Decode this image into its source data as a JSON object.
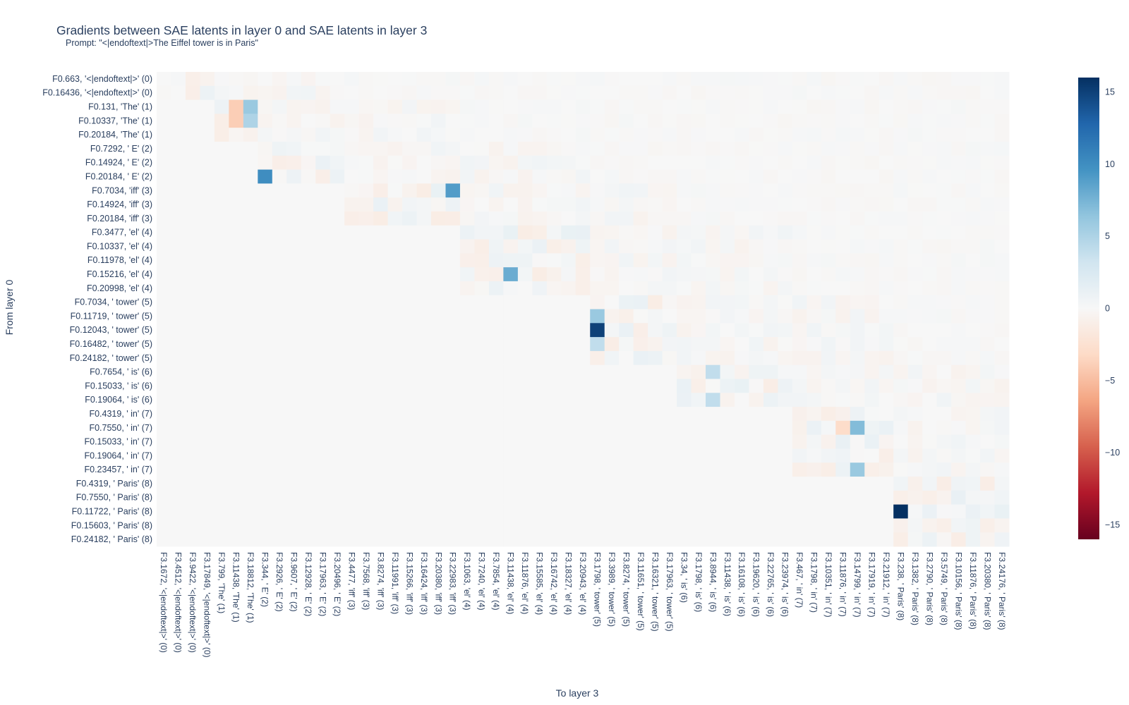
{
  "chart_data": {
    "type": "heatmap",
    "title": "Gradients between SAE latents in layer 0 and SAE latents in layer 3",
    "subtitle": "Prompt: \"<|endoftext|>The Eiffel tower is in Paris\"",
    "xlabel": "To layer 3",
    "ylabel": "From layer 0",
    "zlim": [
      -16,
      16
    ],
    "colorbar_ticks": [
      15,
      10,
      5,
      0,
      -5,
      -10,
      -15
    ],
    "colorbar_tick_labels": [
      "15",
      "10",
      "5",
      "0",
      "−5",
      "−10",
      "−15"
    ],
    "colorscale": [
      "#67001f",
      "#b2182b",
      "#d6604d",
      "#f4a582",
      "#fddbc7",
      "#f7f7f7",
      "#d1e5f0",
      "#92c5de",
      "#4393c3",
      "#2166ac",
      "#053061"
    ],
    "y_labels": [
      "F0.663, '<|endoftext|>' (0)",
      "F0.16436, '<|endoftext|>' (0)",
      "F0.131, 'The' (1)",
      "F0.10337, 'The' (1)",
      "F0.20184, 'The' (1)",
      "F0.7292, ' E' (2)",
      "F0.14924, ' E' (2)",
      "F0.20184, ' E' (2)",
      "F0.7034, 'iff' (3)",
      "F0.14924, 'iff' (3)",
      "F0.20184, 'iff' (3)",
      "F0.3477, 'el' (4)",
      "F0.10337, 'el' (4)",
      "F0.11978, 'el' (4)",
      "F0.15216, 'el' (4)",
      "F0.20998, 'el' (4)",
      "F0.7034, ' tower' (5)",
      "F0.11719, ' tower' (5)",
      "F0.12043, ' tower' (5)",
      "F0.16482, ' tower' (5)",
      "F0.24182, ' tower' (5)",
      "F0.7654, ' is' (6)",
      "F0.15033, ' is' (6)",
      "F0.19064, ' is' (6)",
      "F0.4319, ' in' (7)",
      "F0.7550, ' in' (7)",
      "F0.15033, ' in' (7)",
      "F0.19064, ' in' (7)",
      "F0.23457, ' in' (7)",
      "F0.4319, ' Paris' (8)",
      "F0.7550, ' Paris' (8)",
      "F0.11722, ' Paris' (8)",
      "F0.15603, ' Paris' (8)",
      "F0.24182, ' Paris' (8)"
    ],
    "x_labels": [
      "F3.1672, '<|endoftext|>' (0)",
      "F3.4512, '<|endoftext|>' (0)",
      "F3.9422, '<|endoftext|>' (0)",
      "F3.17849, '<|endoftext|>' (0)",
      "F3.799, 'The' (1)",
      "F3.11438, 'The' (1)",
      "F3.18812, 'The' (1)",
      "F3.344, ' E' (2)",
      "F3.2926, ' E' (2)",
      "F3.9607, ' E' (2)",
      "F3.12928, ' E' (2)",
      "F3.17963, ' E' (2)",
      "F3.20496, ' E' (2)",
      "F3.4477, 'iff' (3)",
      "F3.7568, 'iff' (3)",
      "F3.8274, 'iff' (3)",
      "F3.11991, 'iff' (3)",
      "F3.15266, 'iff' (3)",
      "F3.16424, 'iff' (3)",
      "F3.20380, 'iff' (3)",
      "F3.22983, 'iff' (3)",
      "F3.1063, 'el' (4)",
      "F3.7240, 'el' (4)",
      "F3.7854, 'el' (4)",
      "F3.11438, 'el' (4)",
      "F3.11876, 'el' (4)",
      "F3.15585, 'el' (4)",
      "F3.16742, 'el' (4)",
      "F3.18327, 'el' (4)",
      "F3.20943, 'el' (4)",
      "F3.1798, ' tower' (5)",
      "F3.3989, ' tower' (5)",
      "F3.8274, ' tower' (5)",
      "F3.11651, ' tower' (5)",
      "F3.16321, ' tower' (5)",
      "F3.17963, ' tower' (5)",
      "F3.34, ' is' (6)",
      "F3.1798, ' is' (6)",
      "F3.8944, ' is' (6)",
      "F3.11438, ' is' (6)",
      "F3.16108, ' is' (6)",
      "F3.19620, ' is' (6)",
      "F3.22765, ' is' (6)",
      "F3.23974, ' is' (6)",
      "F3.467, ' in' (7)",
      "F3.1798, ' in' (7)",
      "F3.10351, ' in' (7)",
      "F3.11876, ' in' (7)",
      "F3.14799, ' in' (7)",
      "F3.17919, ' in' (7)",
      "F3.21912, ' in' (7)",
      "F3.238, ' Paris' (8)",
      "F3.1382, ' Paris' (8)",
      "F3.2790, ' Paris' (8)",
      "F3.5749, ' Paris' (8)",
      "F3.10156, ' Paris' (8)",
      "F3.11876, ' Paris' (8)",
      "F3.20380, ' Paris' (8)",
      "F3.24176, ' Paris' (8)"
    ],
    "y_token_groups": [
      {
        "token": 0,
        "rows": [
          0,
          1
        ]
      },
      {
        "token": 1,
        "rows": [
          2,
          4
        ]
      },
      {
        "token": 2,
        "rows": [
          5,
          7
        ]
      },
      {
        "token": 3,
        "rows": [
          8,
          10
        ]
      },
      {
        "token": 4,
        "rows": [
          11,
          15
        ]
      },
      {
        "token": 5,
        "rows": [
          16,
          20
        ]
      },
      {
        "token": 6,
        "rows": [
          21,
          23
        ]
      },
      {
        "token": 7,
        "rows": [
          24,
          28
        ]
      },
      {
        "token": 8,
        "rows": [
          29,
          33
        ]
      }
    ],
    "x_token_groups": [
      {
        "token": 0,
        "cols": [
          0,
          3
        ]
      },
      {
        "token": 1,
        "cols": [
          4,
          6
        ]
      },
      {
        "token": 2,
        "cols": [
          7,
          12
        ]
      },
      {
        "token": 3,
        "cols": [
          13,
          20
        ]
      },
      {
        "token": 4,
        "cols": [
          21,
          29
        ]
      },
      {
        "token": 5,
        "cols": [
          30,
          35
        ]
      },
      {
        "token": 6,
        "cols": [
          36,
          43
        ]
      },
      {
        "token": 7,
        "cols": [
          44,
          50
        ]
      },
      {
        "token": 8,
        "cols": [
          51,
          58
        ]
      }
    ],
    "notable_cells": [
      {
        "x": "F3.1798, ' tower' (5)",
        "y": "F0.12043, ' tower' (5)",
        "z": 15
      },
      {
        "x": "F3.238, ' Paris' (8)",
        "y": "F0.11722, ' Paris' (8)",
        "z": 16
      },
      {
        "x": "F3.22983, 'iff' (3)",
        "y": "F0.7034, 'iff' (3)",
        "z": 9
      },
      {
        "x": "F3.344, ' E' (2)",
        "y": "F0.20184, ' E' (2)",
        "z": 10
      },
      {
        "x": "F3.11438, 'el' (4)",
        "y": "F0.15216, 'el' (4)",
        "z": 8
      },
      {
        "x": "F3.1798, ' tower' (5)",
        "y": "F0.11719, ' tower' (5)",
        "z": 6
      },
      {
        "x": "F3.1798, ' tower' (5)",
        "y": "F0.16482, ' tower' (5)",
        "z": 4
      },
      {
        "x": "F3.11438, 'The' (1)",
        "y": "F0.131, 'The' (1)",
        "z": -4
      },
      {
        "x": "F3.11438, 'The' (1)",
        "y": "F0.10337, 'The' (1)",
        "z": -4
      },
      {
        "x": "F3.18812, 'The' (1)",
        "y": "F0.131, 'The' (1)",
        "z": 6
      },
      {
        "x": "F3.18812, 'The' (1)",
        "y": "F0.10337, 'The' (1)",
        "z": 5
      },
      {
        "x": "F3.14799, ' in' (7)",
        "y": "F0.7550, ' in' (7)",
        "z": 7
      },
      {
        "x": "F3.14799, ' in' (7)",
        "y": "F0.23457, ' in' (7)",
        "z": 6
      },
      {
        "x": "F3.11876, ' in' (7)",
        "y": "F0.7550, ' in' (7)",
        "z": -3
      },
      {
        "x": "F3.8944, ' is' (6)",
        "y": "F0.7654, ' is' (6)",
        "z": 4
      },
      {
        "x": "F3.8944, ' is' (6)",
        "y": "F0.19064, ' is' (6)",
        "z": 4
      }
    ]
  }
}
